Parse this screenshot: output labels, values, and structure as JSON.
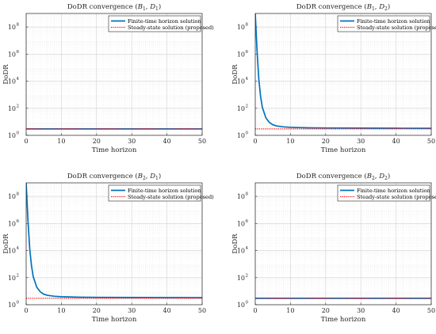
{
  "chart_data": [
    {
      "type": "line",
      "title_main": "DoDR convergence",
      "title_sub1": "B",
      "title_idx1": "1",
      "title_sub2": "D",
      "title_idx2": "1",
      "xlabel": "Time horizon",
      "ylabel": "DoDR",
      "xlim": [
        0,
        50
      ],
      "ylim": [
        1,
        1000000000
      ],
      "yscale": "log",
      "xticks": [
        "0",
        "10",
        "20",
        "30",
        "40",
        "50"
      ],
      "yticks": [
        {
          "base": "10",
          "exp": "0",
          "value": 1
        },
        {
          "base": "10",
          "exp": "2",
          "value": 100
        },
        {
          "base": "10",
          "exp": "4",
          "value": 10000
        },
        {
          "base": "10",
          "exp": "6",
          "value": 1000000
        },
        {
          "base": "10",
          "exp": "8",
          "value": 100000000
        }
      ],
      "grid": true,
      "legend_position": "top-right",
      "series": [
        {
          "name": "Finite-time horizon solution",
          "style": "solid",
          "color": "#0072BD",
          "x": [
            0,
            50
          ],
          "y": [
            3,
            3
          ]
        },
        {
          "name": "Steady-state solution (proposed)",
          "style": "dotted",
          "color": "#FF0000",
          "x": [
            0,
            50
          ],
          "y": [
            3,
            3
          ]
        }
      ]
    },
    {
      "type": "line",
      "title_main": "DoDR convergence",
      "title_sub1": "B",
      "title_idx1": "1",
      "title_sub2": "D",
      "title_idx2": "2",
      "xlabel": "Time horizon",
      "ylabel": "DoDR",
      "xlim": [
        0,
        50
      ],
      "ylim": [
        1,
        1000000000
      ],
      "yscale": "log",
      "xticks": [
        "0",
        "10",
        "20",
        "30",
        "40",
        "50"
      ],
      "yticks": [
        {
          "base": "10",
          "exp": "0",
          "value": 1
        },
        {
          "base": "10",
          "exp": "2",
          "value": 100
        },
        {
          "base": "10",
          "exp": "4",
          "value": 10000
        },
        {
          "base": "10",
          "exp": "6",
          "value": 1000000
        },
        {
          "base": "10",
          "exp": "8",
          "value": 100000000
        }
      ],
      "grid": true,
      "legend_position": "top-right",
      "series": [
        {
          "name": "Finite-time horizon solution",
          "style": "solid",
          "color": "#0072BD",
          "x": [
            0,
            0.5,
            1,
            1.5,
            2,
            3,
            4,
            5,
            6,
            8,
            10,
            15,
            20,
            30,
            40,
            50
          ],
          "y": [
            1000000000,
            2000000,
            15000,
            800,
            120,
            20,
            9,
            6,
            5,
            4.2,
            3.9,
            3.6,
            3.5,
            3.4,
            3.35,
            3.3
          ]
        },
        {
          "name": "Steady-state solution (proposed)",
          "style": "dotted",
          "color": "#FF0000",
          "x": [
            0,
            50
          ],
          "y": [
            3,
            3
          ]
        }
      ]
    },
    {
      "type": "line",
      "title_main": "DoDR convergence",
      "title_sub1": "B",
      "title_idx1": "2",
      "title_sub2": "D",
      "title_idx2": "1",
      "xlabel": "Time horizon",
      "ylabel": "DoDR",
      "xlim": [
        0,
        50
      ],
      "ylim": [
        1,
        1000000000
      ],
      "yscale": "log",
      "xticks": [
        "0",
        "10",
        "20",
        "30",
        "40",
        "50"
      ],
      "yticks": [
        {
          "base": "10",
          "exp": "0",
          "value": 1
        },
        {
          "base": "10",
          "exp": "2",
          "value": 100
        },
        {
          "base": "10",
          "exp": "4",
          "value": 10000
        },
        {
          "base": "10",
          "exp": "6",
          "value": 1000000
        },
        {
          "base": "10",
          "exp": "8",
          "value": 100000000
        }
      ],
      "grid": true,
      "legend_position": "top-right",
      "series": [
        {
          "name": "Finite-time horizon solution",
          "style": "solid",
          "color": "#0072BD",
          "x": [
            0,
            0.5,
            1,
            1.5,
            2,
            3,
            4,
            5,
            6,
            8,
            10,
            15,
            20,
            30,
            40,
            50
          ],
          "y": [
            1000000000,
            2000000,
            15000,
            800,
            120,
            20,
            9,
            6,
            5,
            4.2,
            3.9,
            3.6,
            3.5,
            3.4,
            3.35,
            3.3
          ]
        },
        {
          "name": "Steady-state solution (proposed)",
          "style": "dotted",
          "color": "#FF0000",
          "x": [
            0,
            50
          ],
          "y": [
            3,
            3
          ]
        }
      ]
    },
    {
      "type": "line",
      "title_main": "DoDR convergence",
      "title_sub1": "B",
      "title_idx1": "2",
      "title_sub2": "D",
      "title_idx2": "2",
      "xlabel": "Time horizon",
      "ylabel": "DoDR",
      "xlim": [
        0,
        50
      ],
      "ylim": [
        1,
        1000000000
      ],
      "yscale": "log",
      "xticks": [
        "0",
        "10",
        "20",
        "30",
        "40",
        "50"
      ],
      "yticks": [
        {
          "base": "10",
          "exp": "0",
          "value": 1
        },
        {
          "base": "10",
          "exp": "2",
          "value": 100
        },
        {
          "base": "10",
          "exp": "4",
          "value": 10000
        },
        {
          "base": "10",
          "exp": "6",
          "value": 1000000
        },
        {
          "base": "10",
          "exp": "8",
          "value": 100000000
        }
      ],
      "grid": true,
      "legend_position": "top-right",
      "series": [
        {
          "name": "Finite-time horizon solution",
          "style": "solid",
          "color": "#0072BD",
          "x": [
            0,
            50
          ],
          "y": [
            3,
            3
          ]
        },
        {
          "name": "Steady-state solution (proposed)",
          "style": "dotted",
          "color": "#FF0000",
          "x": [
            0,
            50
          ],
          "y": [
            3,
            3
          ]
        }
      ]
    }
  ]
}
